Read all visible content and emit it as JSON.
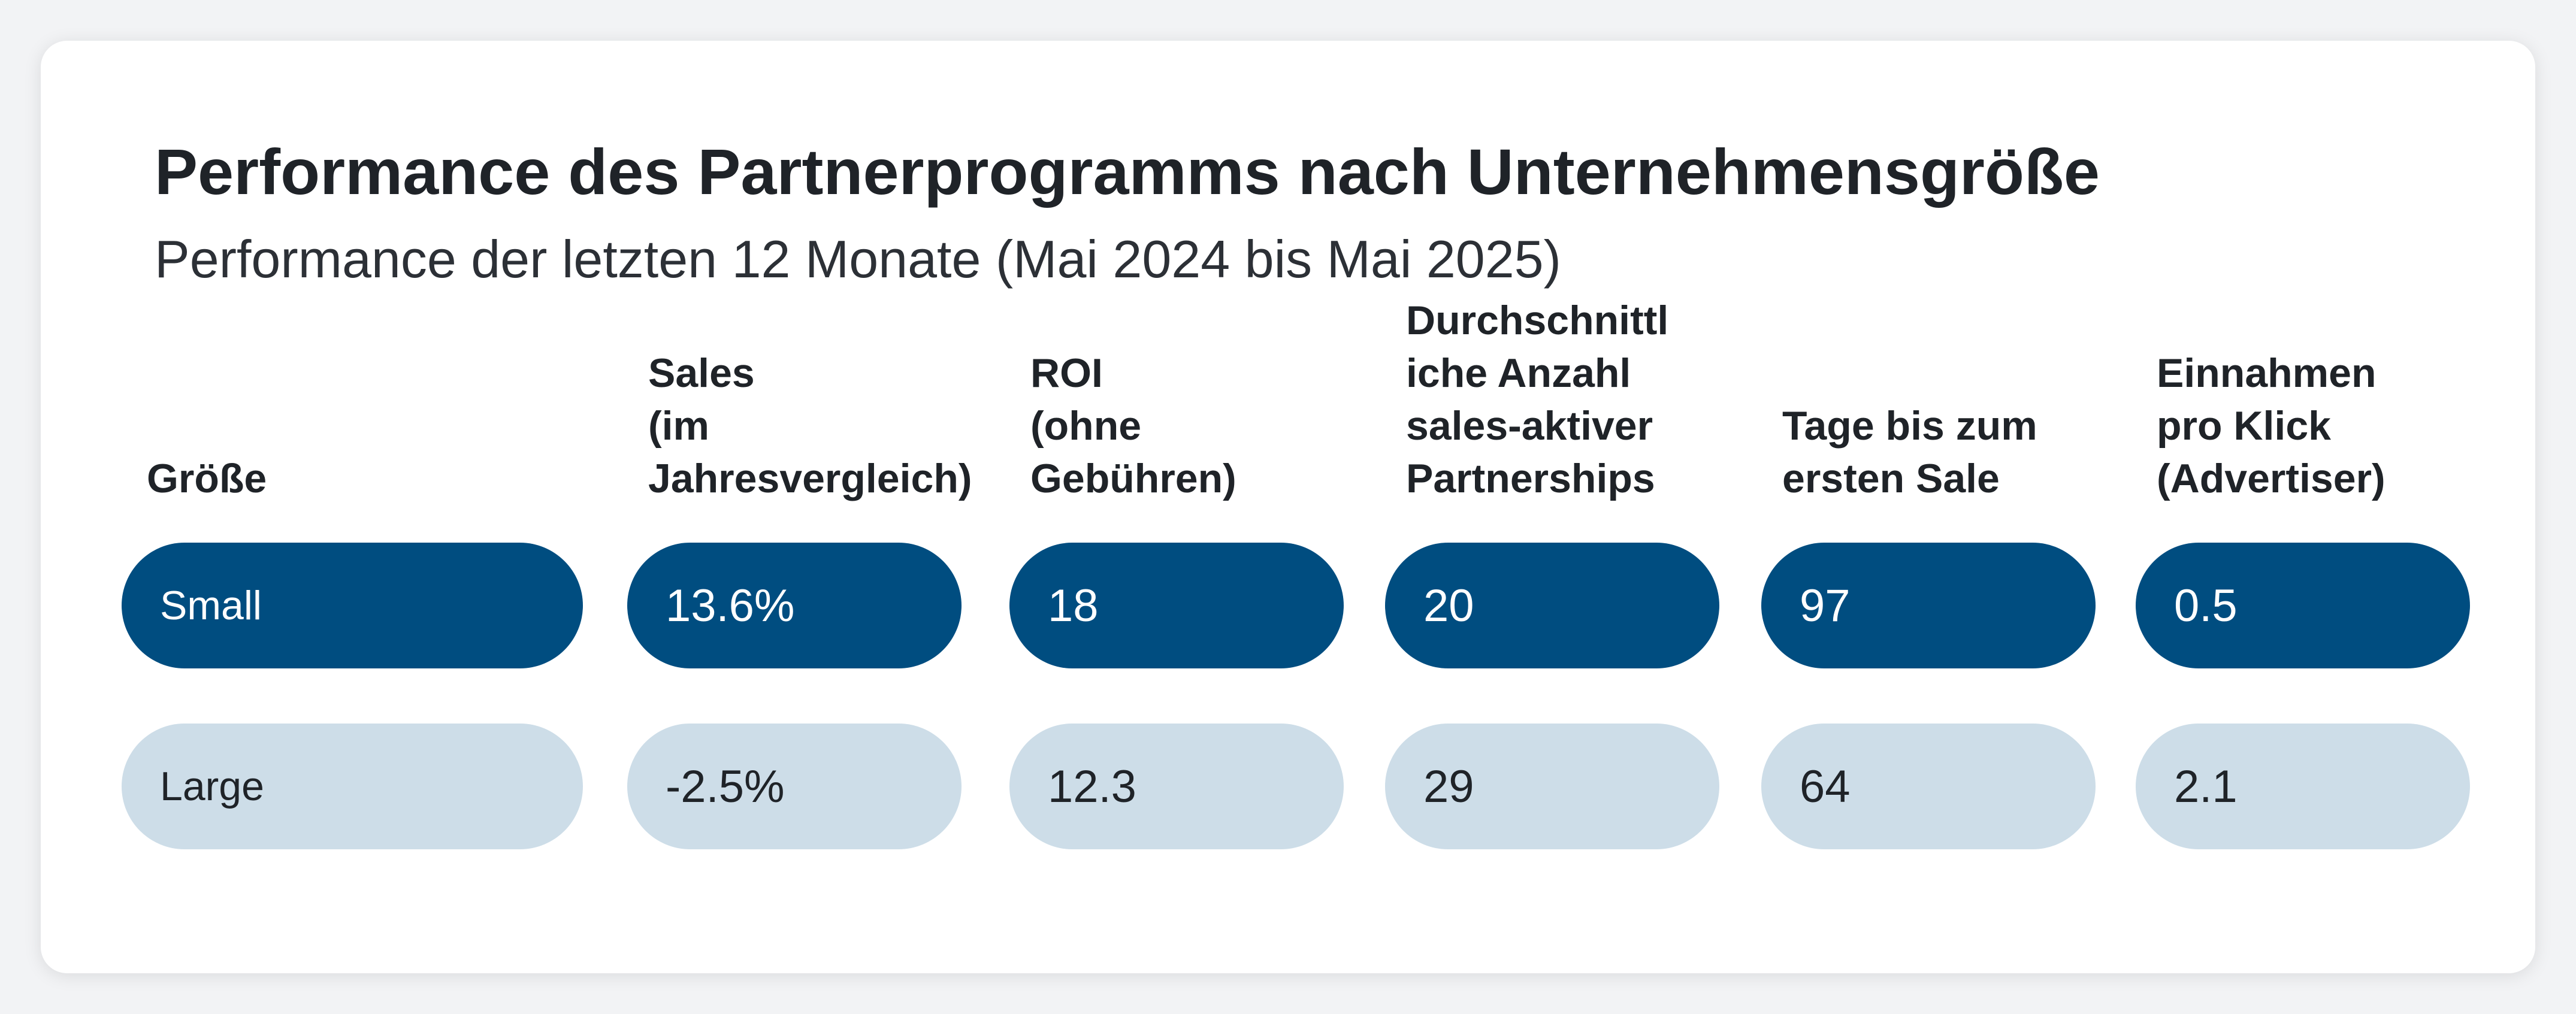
{
  "chart_data": {
    "type": "table",
    "title": "Performance des Partnerprogramms nach Unternehmensgröße",
    "subtitle": "Performance der letzten 12 Monate (Mai 2024 bis Mai 2025)",
    "columns": [
      "Größe",
      "Sales\n(im\nJahresvergleich)",
      "ROI\n(ohne\nGebühren)",
      "Durchschnittl\niche Anzahl\nsales-aktiver\nPartnerships",
      "Tage bis zum\nersten Sale",
      "Einnahmen\npro Klick\n(Advertiser)"
    ],
    "rows": [
      [
        "Small",
        "13.6%",
        "18",
        "20",
        "97",
        "0.5"
      ],
      [
        "Large",
        "-2.5%",
        "12.3",
        "29",
        "64",
        "2.1"
      ]
    ],
    "colors": {
      "small_row": "#004d80",
      "large_row": "#cddde8"
    }
  }
}
